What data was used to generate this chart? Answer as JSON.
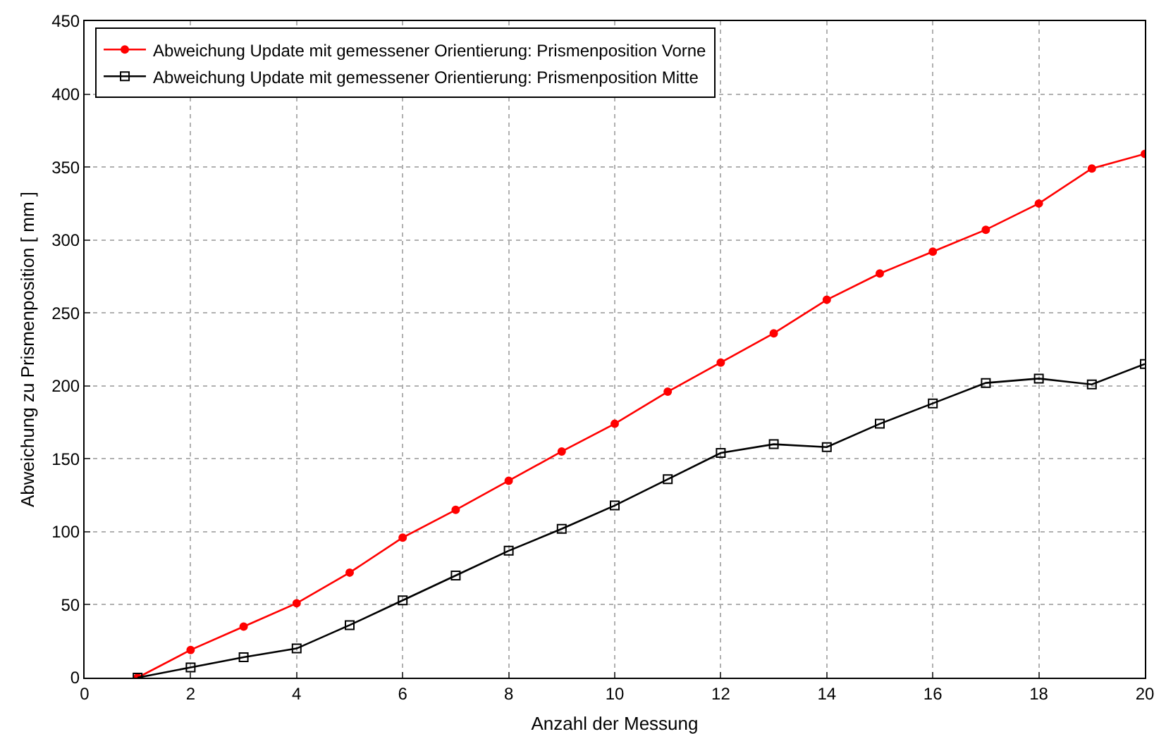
{
  "chart_data": {
    "type": "line",
    "xlabel": "Anzahl der Messung",
    "ylabel": "Abweichung zu Prismenposition [ mm ]",
    "x": [
      1,
      2,
      3,
      4,
      5,
      6,
      7,
      8,
      9,
      10,
      11,
      12,
      13,
      14,
      15,
      16,
      17,
      18,
      19,
      20
    ],
    "series": [
      {
        "name": "Abweichung Update mit gemessener Orientierung: Prismenposition Vorne",
        "color": "#ff0000",
        "marker": "circle",
        "values": [
          0,
          19,
          35,
          51,
          72,
          96,
          115,
          135,
          155,
          174,
          196,
          216,
          236,
          259,
          277,
          292,
          307,
          325,
          349,
          359
        ]
      },
      {
        "name": "Abweichung Update mit gemessener Orientierung: Prismenposition Mitte",
        "color": "#000000",
        "marker": "square",
        "values": [
          0,
          7,
          14,
          20,
          36,
          53,
          70,
          87,
          102,
          118,
          136,
          154,
          160,
          158,
          174,
          188,
          202,
          205,
          201,
          215
        ]
      }
    ],
    "xlim": [
      0,
      20
    ],
    "xticks": [
      0,
      2,
      4,
      6,
      8,
      10,
      12,
      14,
      16,
      18,
      20
    ],
    "ylim": [
      0,
      450
    ],
    "yticks": [
      0,
      50,
      100,
      150,
      200,
      250,
      300,
      350,
      400,
      450
    ],
    "grid": true,
    "legend": "top left",
    "line_style": "solid"
  }
}
